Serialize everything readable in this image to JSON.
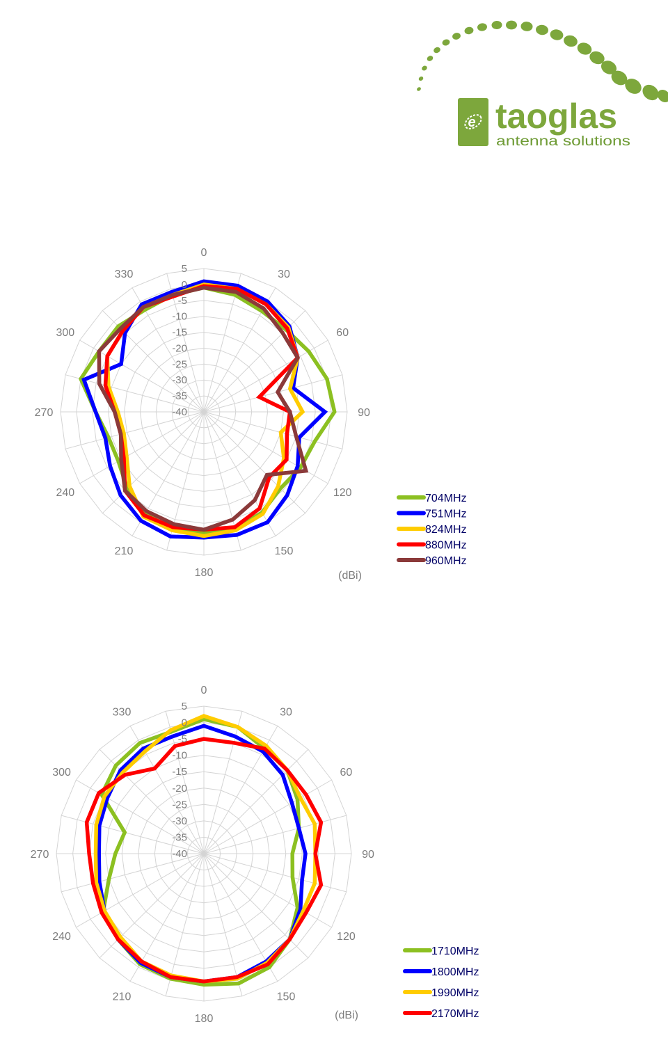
{
  "brand": {
    "name": "taoglas",
    "tagline": "antenna solutions",
    "color": "#7da73c"
  },
  "chart_data": [
    {
      "type": "line",
      "projection": "polar",
      "title": "",
      "unit_label": "(dBi)",
      "angle_labels": [
        "0",
        "30",
        "60",
        "90",
        "120",
        "150",
        "180",
        "210",
        "240",
        "270",
        "300",
        "330"
      ],
      "radial_ticks": [
        "5",
        "0",
        "-5",
        "-10",
        "-15",
        "-20",
        "-25",
        "-30",
        "-35",
        "-40"
      ],
      "rlim": [
        -40,
        5
      ],
      "angles": [
        0,
        15,
        30,
        45,
        60,
        75,
        90,
        105,
        120,
        135,
        150,
        165,
        180,
        195,
        210,
        225,
        240,
        255,
        270,
        285,
        300,
        315,
        330,
        345
      ],
      "grid": true,
      "legend_position": "right-bottom",
      "series": [
        {
          "name": "704MHz",
          "color": "#8cc021",
          "values": [
            -1,
            -2,
            -3.5,
            -3.5,
            -2,
            0,
            1,
            -4,
            -5,
            -6,
            -3.5,
            -2,
            -2,
            -2,
            -3,
            -6,
            -9,
            -9,
            -6,
            0,
            -2,
            -2,
            -3,
            -2
          ]
        },
        {
          "name": "751MHz",
          "color": "#0000ff",
          "values": [
            1,
            1,
            0,
            -2,
            -6,
            -11,
            -2,
            -9,
            -6,
            -3,
            0,
            0,
            -0.5,
            0.5,
            -0.5,
            -3,
            -6,
            -8,
            -6,
            -1,
            -10,
            -5,
            -1,
            -1
          ]
        },
        {
          "name": "824MHz",
          "color": "#ffcc00",
          "values": [
            0,
            0,
            -1,
            -2.5,
            -6,
            -12,
            -9,
            -15,
            -11,
            -7,
            -3,
            -1.5,
            -1,
            -1.5,
            -2,
            -7,
            -12,
            -14,
            -13,
            -9,
            -5,
            -4,
            -2,
            -2
          ]
        },
        {
          "name": "880MHz",
          "color": "#ff0000",
          "values": [
            -0.5,
            0,
            -1,
            -3,
            -6,
            -22,
            -13,
            -13,
            -10,
            -11,
            -5,
            -2.5,
            -3,
            -2.5,
            -2.5,
            -5,
            -11,
            -13,
            -12,
            -8,
            -5,
            -4,
            -2,
            -2.5
          ]
        },
        {
          "name": "960MHz",
          "color": "#8b3a3a",
          "values": [
            -1,
            -1,
            -2.5,
            -5,
            -6,
            -16,
            -13,
            -10,
            -3,
            -12,
            -8,
            -5,
            -3,
            -3.5,
            -4,
            -5,
            -10,
            -13,
            -12,
            -6,
            -2,
            -3,
            -2,
            -2
          ]
        }
      ]
    },
    {
      "type": "line",
      "projection": "polar",
      "title": "",
      "unit_label": "(dBi)",
      "angle_labels": [
        "0",
        "30",
        "60",
        "90",
        "120",
        "150",
        "180",
        "210",
        "240",
        "270",
        "300",
        "330"
      ],
      "radial_ticks": [
        "5",
        "0",
        "-5",
        "-10",
        "-15",
        "-20",
        "-25",
        "-30",
        "-35",
        "-40"
      ],
      "rlim": [
        -40,
        5
      ],
      "angles": [
        0,
        15,
        30,
        45,
        60,
        75,
        90,
        105,
        120,
        135,
        150,
        165,
        180,
        195,
        210,
        225,
        240,
        255,
        270,
        285,
        300,
        315,
        330,
        345
      ],
      "grid": true,
      "legend_position": "right-bottom",
      "series": [
        {
          "name": "1710MHz",
          "color": "#8cc021",
          "values": [
            1,
            0,
            -3,
            -4,
            -7,
            -10,
            -13,
            -12,
            -7,
            -3,
            0,
            1,
            0,
            -0.5,
            -1,
            -3,
            -4.5,
            -10,
            -13,
            -15,
            -4,
            -2,
            -1,
            -1.5
          ]
        },
        {
          "name": "1800MHz",
          "color": "#0000ff",
          "values": [
            -1,
            -3,
            -4,
            -6,
            -9,
            -10,
            -9,
            -9,
            -6,
            -3,
            -2,
            -1,
            -1,
            -1,
            -1.5,
            -3,
            -5,
            -7,
            -8,
            -7,
            -6,
            -4,
            -3,
            -3
          ]
        },
        {
          "name": "1990MHz",
          "color": "#ffcc00",
          "values": [
            2,
            0,
            -2,
            -4,
            -6,
            -5,
            -6,
            -5,
            -5,
            -3,
            -1.5,
            -0.5,
            -1,
            -1.5,
            -2,
            -4,
            -5,
            -6,
            -7,
            -6,
            -5,
            -5,
            -4,
            -1
          ]
        },
        {
          "name": "2170MHz",
          "color": "#ff0000",
          "values": [
            -5,
            -5,
            -3,
            -4,
            -4,
            -3,
            -6,
            -3,
            -4,
            -3,
            -1,
            -1,
            -1,
            -1,
            -2,
            -3,
            -4,
            -5,
            -5,
            -3,
            -3,
            -6,
            -10,
            -6
          ]
        }
      ]
    }
  ]
}
